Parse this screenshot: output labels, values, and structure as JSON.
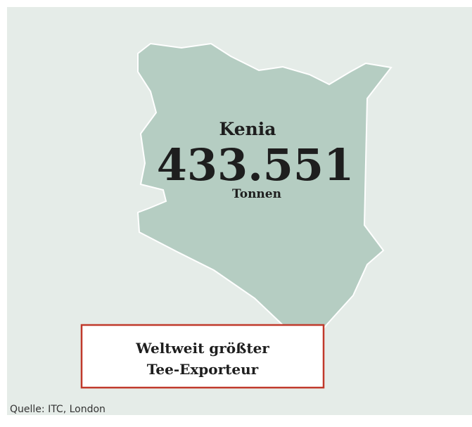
{
  "map": {
    "region": "Kenia",
    "amount": "433.551",
    "unit": "Tonnen"
  },
  "callout": {
    "lines": [
      "Weltweit größter",
      "Tee-Exporteur"
    ]
  },
  "source": "Quelle: ITC, London"
}
